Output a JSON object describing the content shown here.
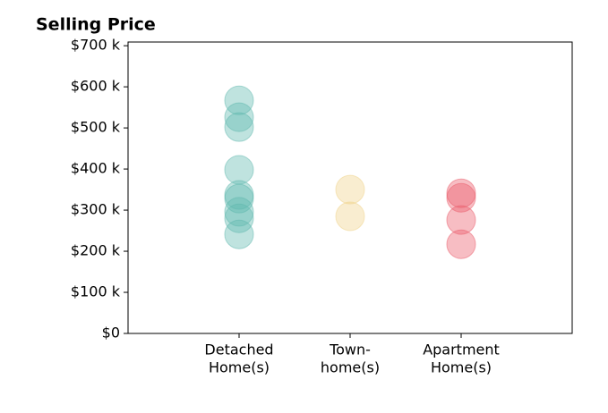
{
  "chart_data": {
    "type": "strip",
    "title": "Selling Price",
    "categories": [
      [
        "Detached",
        "Home(s)"
      ],
      [
        "Town-",
        "home(s)"
      ],
      [
        "Apartment",
        "Home(s)"
      ]
    ],
    "values": [
      [
        567,
        526,
        502,
        398,
        337,
        328,
        296,
        280,
        241
      ],
      [
        350,
        285
      ],
      [
        341,
        330,
        276,
        217
      ]
    ],
    "colors": [
      "#5fb8ae",
      "#f0d38a",
      "#ea5b6a"
    ],
    "ylim": [
      0,
      709
    ],
    "yticks": [
      {
        "value": 0,
        "label": "$0"
      },
      {
        "value": 100,
        "label": "$100 k"
      },
      {
        "value": 200,
        "label": "$200 k"
      },
      {
        "value": 300,
        "label": "$300 k"
      },
      {
        "value": 400,
        "label": "$400 k"
      },
      {
        "value": 500,
        "label": "$500 k"
      },
      {
        "value": 600,
        "label": "$600 k"
      },
      {
        "value": 700,
        "label": "$700 k"
      }
    ]
  }
}
